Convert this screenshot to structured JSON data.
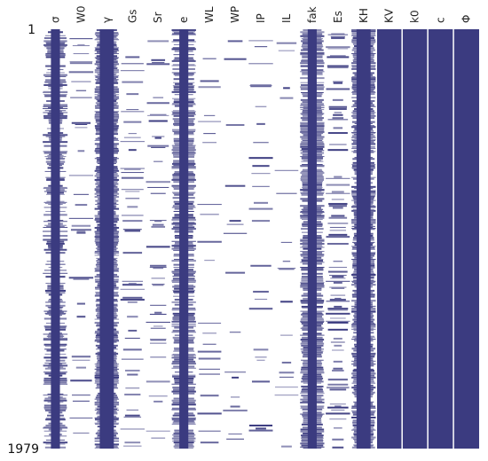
{
  "chart_data": {
    "type": "heatmap",
    "title": "",
    "xlabel": "",
    "ylabel": "",
    "columns": [
      "σ",
      "W0",
      "γ",
      "Gs",
      "Sr",
      "e",
      "WL",
      "WP",
      "IP",
      "IL",
      "fak",
      "Es",
      "KH",
      "KV",
      "k0",
      "c",
      "Φ"
    ],
    "row_range": [
      1,
      1979
    ],
    "row_labels": [
      "1",
      "1979"
    ],
    "column_fill_fraction": [
      0.62,
      0.1,
      0.92,
      0.12,
      0.14,
      0.75,
      0.05,
      0.05,
      0.05,
      0.06,
      0.85,
      0.28,
      0.9,
      1.0,
      1.0,
      1.0,
      1.0
    ],
    "colors": {
      "filled": "#3b3b80",
      "missing": "#ffffff",
      "separator": "#ffffff"
    }
  }
}
